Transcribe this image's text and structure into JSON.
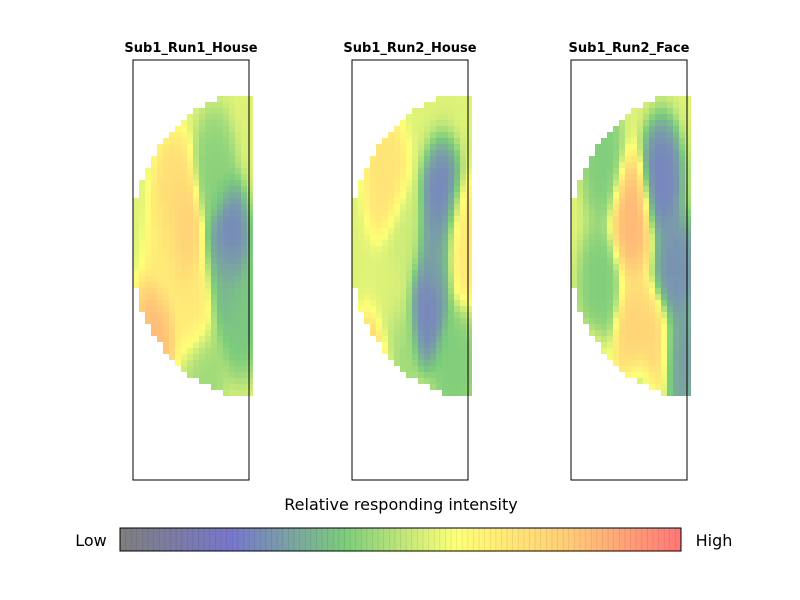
{
  "chart_data": {
    "type": "heatmap",
    "grid": false,
    "panels": [
      {
        "title": "Sub1_Run1_House",
        "hotspots": [
          {
            "x": 0.35,
            "y": 0.25,
            "v": 0.74
          },
          {
            "x": 0.42,
            "y": 0.38,
            "v": 0.8
          },
          {
            "x": 0.55,
            "y": 0.62,
            "v": 0.7
          },
          {
            "x": 0.18,
            "y": 0.72,
            "v": 0.85
          },
          {
            "x": 0.3,
            "y": 0.45,
            "v": 0.68
          },
          {
            "x": 0.82,
            "y": 0.4,
            "v": 0.22
          },
          {
            "x": 0.78,
            "y": 0.55,
            "v": 0.35
          },
          {
            "x": 0.7,
            "y": 0.18,
            "v": 0.42
          },
          {
            "x": 0.92,
            "y": 0.65,
            "v": 0.38
          },
          {
            "x": 0.62,
            "y": 0.82,
            "v": 0.45
          }
        ]
      },
      {
        "title": "Sub1_Run2_House",
        "hotspots": [
          {
            "x": 0.3,
            "y": 0.2,
            "v": 0.72
          },
          {
            "x": 0.78,
            "y": 0.28,
            "v": 0.22
          },
          {
            "x": 0.72,
            "y": 0.45,
            "v": 0.3
          },
          {
            "x": 0.65,
            "y": 0.62,
            "v": 0.22
          },
          {
            "x": 0.35,
            "y": 0.6,
            "v": 0.55
          },
          {
            "x": 0.2,
            "y": 0.85,
            "v": 0.82
          },
          {
            "x": 0.4,
            "y": 0.75,
            "v": 0.45
          },
          {
            "x": 0.88,
            "y": 0.82,
            "v": 0.4
          },
          {
            "x": 0.95,
            "y": 0.4,
            "v": 0.7
          },
          {
            "x": 0.45,
            "y": 0.4,
            "v": 0.52
          }
        ]
      },
      {
        "title": "Sub1_Run2_Face",
        "hotspots": [
          {
            "x": 0.52,
            "y": 0.33,
            "v": 0.86
          },
          {
            "x": 0.55,
            "y": 0.73,
            "v": 0.78
          },
          {
            "x": 0.72,
            "y": 0.78,
            "v": 0.78
          },
          {
            "x": 0.78,
            "y": 0.2,
            "v": 0.22
          },
          {
            "x": 0.9,
            "y": 0.5,
            "v": 0.25
          },
          {
            "x": 0.92,
            "y": 0.8,
            "v": 0.28
          },
          {
            "x": 0.28,
            "y": 0.15,
            "v": 0.4
          },
          {
            "x": 0.25,
            "y": 0.55,
            "v": 0.4
          },
          {
            "x": 0.18,
            "y": 0.88,
            "v": 0.6
          },
          {
            "x": 0.6,
            "y": 0.95,
            "v": 0.4
          }
        ]
      }
    ],
    "colorbar": {
      "label": "Relative responding intensity",
      "low_label": "Low",
      "high_label": "High",
      "colormap": [
        "#7f7f7f",
        "#7777cc",
        "#7ccc7c",
        "#ffff77",
        "#ffcc77",
        "#ff7777"
      ]
    }
  }
}
